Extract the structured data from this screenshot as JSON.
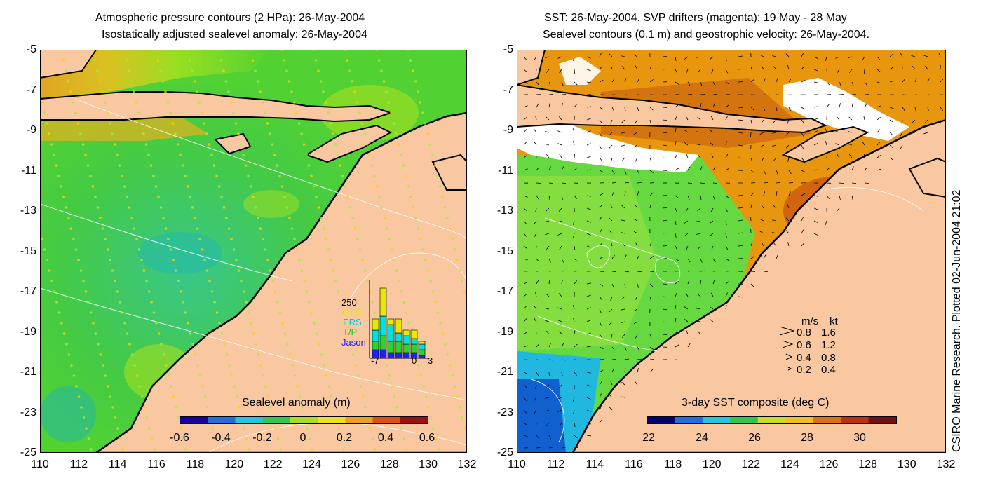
{
  "left_panel": {
    "title_line1": "Atmospheric pressure contours (2 HPa): 26-May-2004",
    "title_line2": "Isostatically adjusted sealevel anomaly: 26-May-2004",
    "colorbar_title": "Sealevel anomaly (m)",
    "colorbar_ticks": [
      "-0.6",
      "-0.4",
      "-0.2",
      "0",
      "0.2",
      "0.4",
      "0.6"
    ],
    "colorbar_colors": [
      "#1a00a0",
      "#1f6fe0",
      "#1fc8e0",
      "#2ec84a",
      "#a8e020",
      "#f0e020",
      "#f0a020",
      "#e05010",
      "#a01010"
    ],
    "inset": {
      "ytick": "250",
      "series_labels": [
        "GFO",
        "ERS",
        "T/P",
        "Jason"
      ],
      "series_colors": [
        "#e8e800",
        "#00e0e0",
        "#30d030",
        "#2020ff"
      ],
      "xticks": [
        "-7",
        "0",
        "3"
      ],
      "bar_values": [
        {
          "jason": 30,
          "tp": 30,
          "ers": 40,
          "gfo": 40
        },
        {
          "jason": 30,
          "tp": 50,
          "ers": 70,
          "gfo": 100
        },
        {
          "jason": 20,
          "tp": 40,
          "ers": 60,
          "gfo": 20
        },
        {
          "jason": 20,
          "tp": 40,
          "ers": 30,
          "gfo": 50
        },
        {
          "jason": 20,
          "tp": 30,
          "ers": 30,
          "gfo": 20
        },
        {
          "jason": 20,
          "tp": 30,
          "ers": 20,
          "gfo": 30
        },
        {
          "jason": 10,
          "tp": 20,
          "ers": 20,
          "gfo": 10
        }
      ]
    }
  },
  "right_panel": {
    "title_line1": "SST: 26-May-2004. SVP drifters (magenta): 19 May - 28 May",
    "title_line2": "Sealevel contours (0.1 m) and geostrophic velocity: 26-May-2004.",
    "colorbar_title": "3-day SST composite (deg C)",
    "colorbar_ticks": [
      "22",
      "24",
      "26",
      "28",
      "30"
    ],
    "colorbar_colors": [
      "#000070",
      "#1f6fe0",
      "#1fc8e0",
      "#2ec84a",
      "#c8e020",
      "#f0c020",
      "#e07010",
      "#c03010",
      "#701010"
    ],
    "velocity_legend": {
      "header_ms": "m/s",
      "header_kt": "kt",
      "rows": [
        {
          "ms": "0.8",
          "kt": "1.6"
        },
        {
          "ms": "0.6",
          "kt": "1.2"
        },
        {
          "ms": "0.4",
          "kt": "0.8"
        },
        {
          "ms": "0.2",
          "kt": "0.4"
        }
      ]
    }
  },
  "axes": {
    "lat_ticks": [
      "-5",
      "-7",
      "-9",
      "-11",
      "-13",
      "-15",
      "-17",
      "-19",
      "-21",
      "-23",
      "-25"
    ],
    "lon_ticks": [
      "110",
      "112",
      "114",
      "116",
      "118",
      "120",
      "122",
      "124",
      "126",
      "128",
      "130",
      "132"
    ],
    "lat_range": [
      -25,
      -5
    ],
    "lon_range": [
      110,
      132
    ]
  },
  "credit": "CSIRO Marine Research. Plotted 02-Jun-2004 21:02",
  "colors": {
    "land": "#f9c8a0",
    "ocean_left": "#52d232",
    "ocean_right_warm": "#e8960e",
    "ocean_right_cool": "#66d840",
    "cloud": "#ffffff"
  }
}
